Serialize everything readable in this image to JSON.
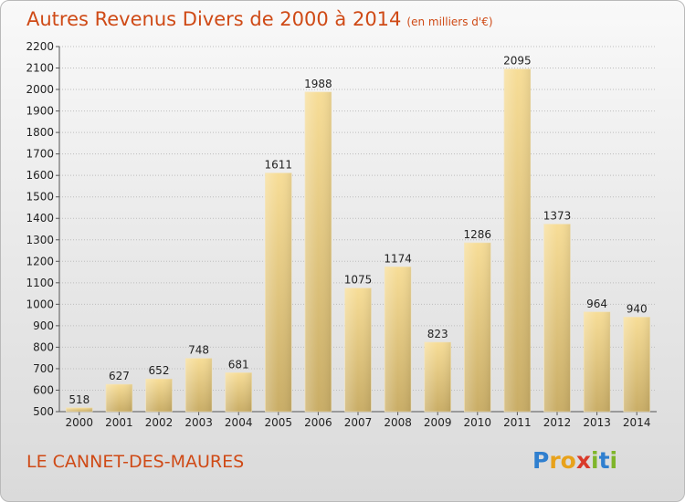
{
  "chart_data": {
    "type": "bar",
    "title": "Autres Revenus Divers de 2000 à 2014",
    "unit": "(en milliers d'€)",
    "categories": [
      "2000",
      "2001",
      "2002",
      "2003",
      "2004",
      "2005",
      "2006",
      "2007",
      "2008",
      "2009",
      "2010",
      "2011",
      "2012",
      "2013",
      "2014"
    ],
    "values": [
      518,
      627,
      652,
      748,
      681,
      1611,
      1988,
      1075,
      1174,
      823,
      1286,
      2095,
      1373,
      964,
      940
    ],
    "ylim": [
      500,
      2200
    ],
    "yticks": [
      500,
      600,
      700,
      800,
      900,
      1000,
      1100,
      1200,
      1300,
      1400,
      1500,
      1600,
      1700,
      1800,
      1900,
      2000,
      2100,
      2200
    ],
    "grid": true,
    "bar_color": "#e3c77c"
  },
  "location": "LE CANNET-DES-MAURES",
  "logo": {
    "letters": [
      "P",
      "r",
      "o",
      "x",
      "i",
      "t",
      "i"
    ],
    "colors": [
      "#2f7fcf",
      "#e8a21b",
      "#e8a21b",
      "#d93a2a",
      "#7fb52a",
      "#2f7fcf",
      "#7fb52a"
    ]
  }
}
